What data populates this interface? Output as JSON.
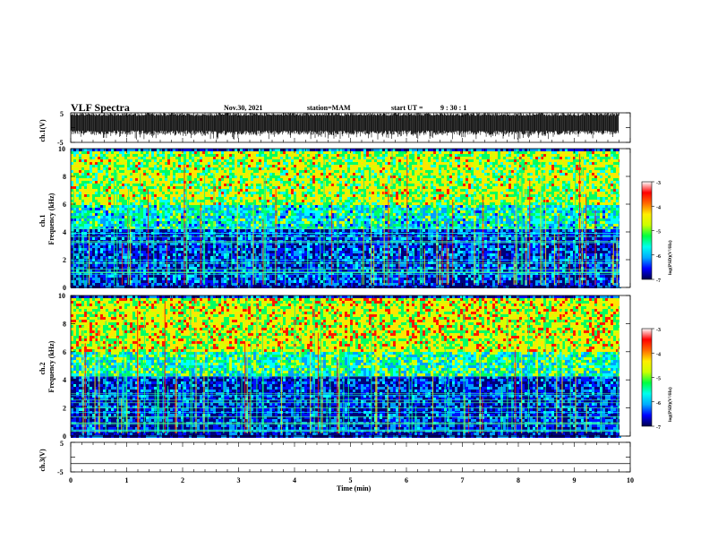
{
  "header": {
    "title": "VLF Spectra",
    "date": "Nov.30, 2021",
    "station": "station=MAM",
    "start_label": "start UT =",
    "start_time": "9 : 30 : 1"
  },
  "chart_data": [
    {
      "type": "line",
      "panel": "ch.1 waveform",
      "ylabel": "ch.1(V)",
      "ylim": [
        -5,
        5
      ],
      "yticks": [
        "5",
        "-5"
      ],
      "xlim": [
        0,
        10
      ],
      "description_series": [
        {
          "x": [
            0,
            9.8
          ],
          "y_min": -2.5,
          "y_max": 5
        }
      ]
    },
    {
      "type": "heatmap",
      "panel": "ch.1 spectrogram",
      "ylabel": "Frequency (kHz)",
      "ylabel_prefix": "ch.1",
      "ylim": [
        0,
        10
      ],
      "yticks": [
        "0",
        "2",
        "4",
        "6",
        "8",
        "10"
      ],
      "xlim": [
        0,
        10
      ],
      "colorbar": {
        "label": "log(PSD)(V²/Hz)",
        "range": [
          -7,
          -3
        ],
        "ticks": [
          "-3",
          "-4",
          "-5",
          "-6",
          "-7"
        ]
      },
      "bands": [
        {
          "f_from": 0,
          "f_to": 0.5,
          "level": -6.5
        },
        {
          "f_from": 0.5,
          "f_to": 4.3,
          "level": -6.2
        },
        {
          "f_from": 4.3,
          "f_to": 6,
          "level": -5.2
        },
        {
          "f_from": 6,
          "f_to": 10,
          "level": -4.3
        }
      ]
    },
    {
      "type": "heatmap",
      "panel": "ch.2 spectrogram",
      "ylabel": "Frequency (kHz)",
      "ylabel_prefix": "ch.2",
      "ylim": [
        0,
        10
      ],
      "yticks": [
        "0",
        "2",
        "4",
        "6",
        "8",
        "10"
      ],
      "xlim": [
        0,
        10
      ],
      "colorbar": {
        "label": "log(PSD)(V²/Hz)",
        "range": [
          -7,
          -3
        ],
        "ticks": [
          "-3",
          "-4",
          "-5",
          "-6",
          "-7"
        ]
      },
      "bands": [
        {
          "f_from": 0,
          "f_to": 0.5,
          "level": -6.5
        },
        {
          "f_from": 0.5,
          "f_to": 4.3,
          "level": -6.3
        },
        {
          "f_from": 4.3,
          "f_to": 6,
          "level": -5.0
        },
        {
          "f_from": 6,
          "f_to": 10,
          "level": -4.1
        }
      ]
    },
    {
      "type": "line",
      "panel": "ch.3 waveform",
      "ylabel": "ch.3(V)",
      "ylim": [
        -5,
        5
      ],
      "yticks": [
        "5",
        "-5"
      ],
      "xlim": [
        0,
        10
      ],
      "xlabel": "Time (min)",
      "xticks": [
        "0",
        "1",
        "2",
        "3",
        "4",
        "5",
        "6",
        "7",
        "8",
        "9",
        "10"
      ],
      "series": [
        {
          "x": [
            0,
            10
          ],
          "y": [
            -2.2,
            -2.2
          ]
        }
      ]
    }
  ],
  "colors": {
    "colormap": [
      "#00007a",
      "#0010ff",
      "#00a0ff",
      "#00ffff",
      "#00ff60",
      "#d8ff00",
      "#ffe600",
      "#ff1a00"
    ]
  }
}
